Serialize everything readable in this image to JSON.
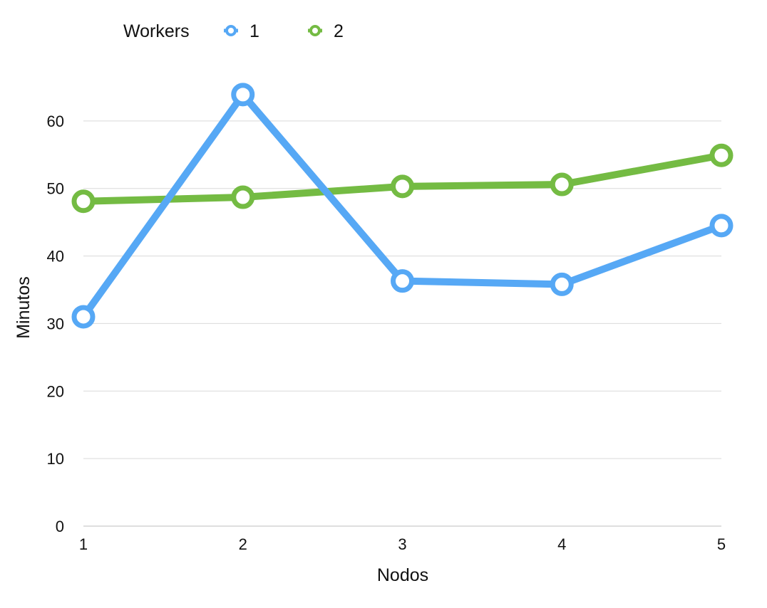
{
  "chart_data": {
    "type": "line",
    "title": "",
    "xlabel": "Nodos",
    "ylabel": "Minutos",
    "legend_title": "Workers",
    "legend_position": "top-left",
    "categories": [
      "1",
      "2",
      "3",
      "4",
      "5"
    ],
    "x": [
      1,
      2,
      3,
      4,
      5
    ],
    "ylim": [
      0,
      70
    ],
    "yticks": [
      0,
      10,
      20,
      30,
      40,
      50,
      60
    ],
    "grid": true,
    "series": [
      {
        "name": "1",
        "color": "#56a8f5",
        "values": [
          31.0,
          63.9,
          36.3,
          35.8,
          44.5
        ]
      },
      {
        "name": "2",
        "color": "#74bb43",
        "values": [
          48.1,
          48.7,
          50.3,
          50.6,
          54.9
        ]
      }
    ]
  }
}
